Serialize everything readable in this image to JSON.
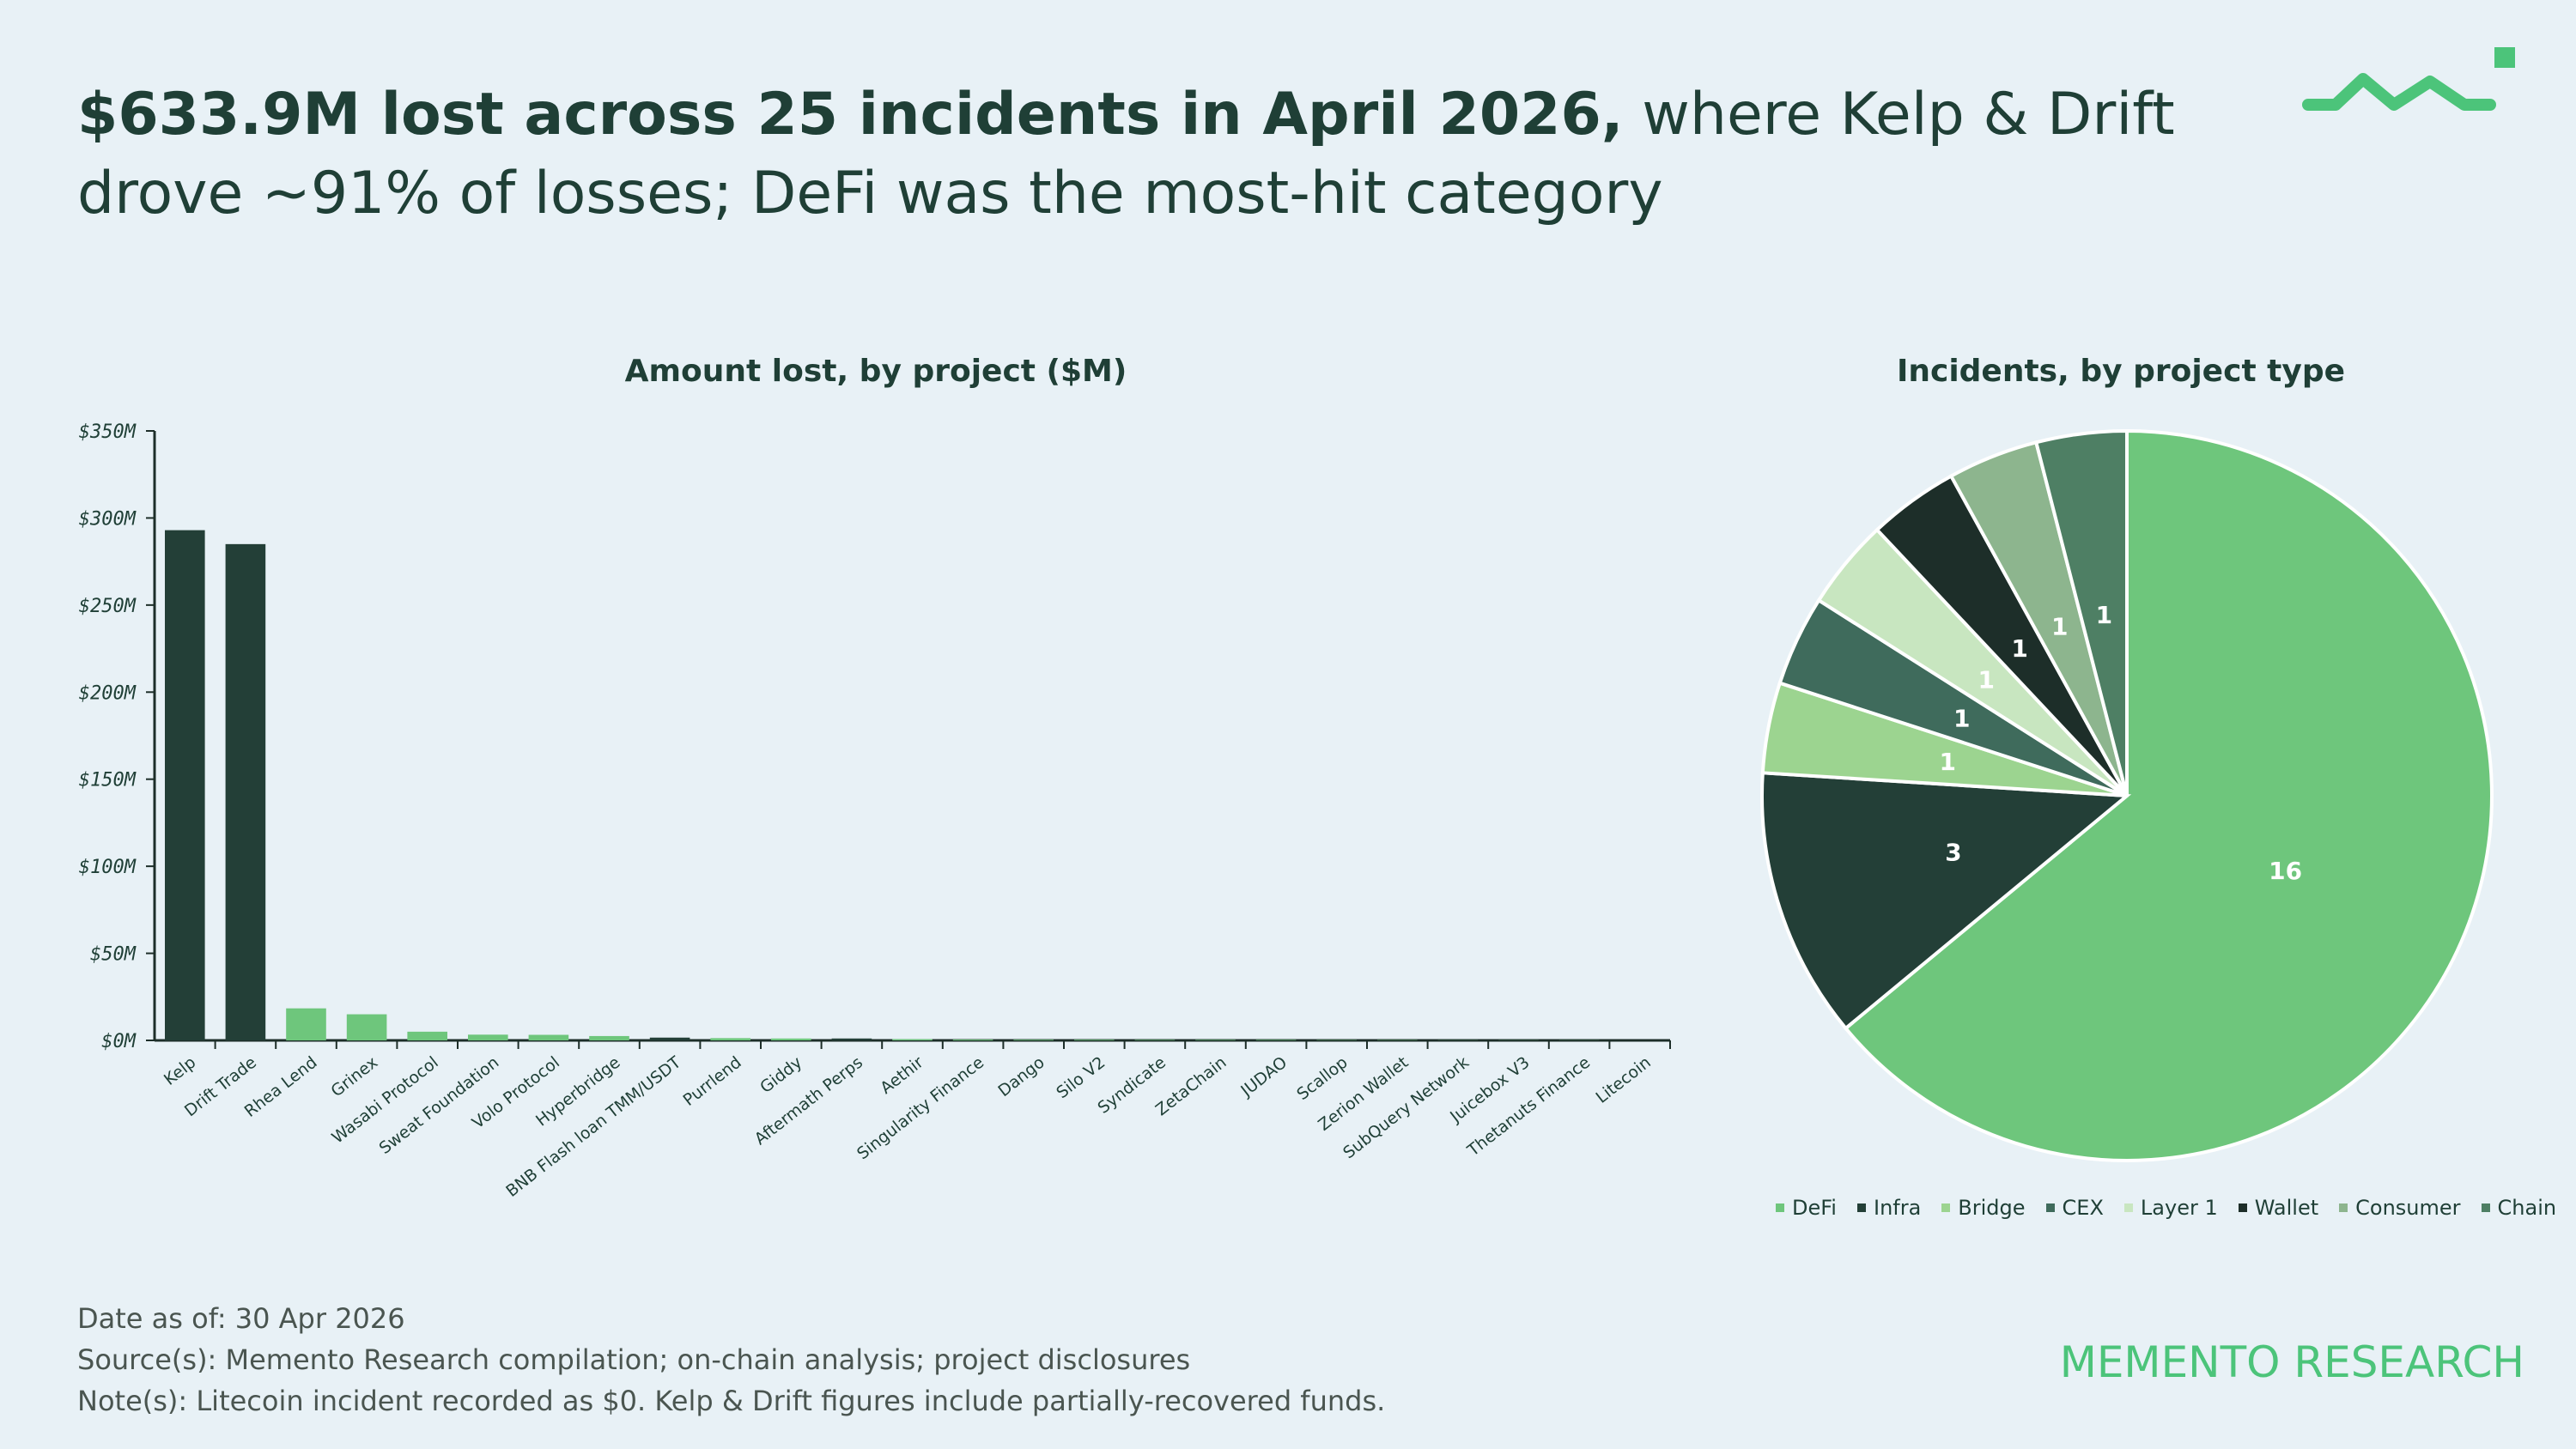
{
  "header": {
    "title_bold": "$633.9M lost across 25 incidents in April 2026,",
    "title_rest": " where Kelp & Drift drove ~91% of losses; DeFi was the most-hit category"
  },
  "logo": {
    "icon": "memento-wave-logo",
    "color": "#4cc47a"
  },
  "bar_chart_title": "Amount lost, by project ($M)",
  "pie_chart_title": "Incidents, by project type",
  "footer": {
    "date": "Date as of: 30 Apr 2026",
    "sources": "Source(s): Memento Research compilation; on-chain analysis; project disclosures",
    "notes": "Note(s): Litecoin incident recorded as $0. Kelp & Drift figures include partially-recovered funds."
  },
  "brand": "MEMENTO RESEARCH",
  "colors": {
    "background": "#e8f1f6",
    "dark_green": "#233f37",
    "light_green": "#6ec67c",
    "text": "#1f3f36",
    "brand": "#4cc47a"
  },
  "chart_data": [
    {
      "type": "bar",
      "title": "Amount lost, by project ($M)",
      "categories": [
        "Kelp",
        "Drift Trade",
        "Rhea Lend",
        "Grinex",
        "Wasabi Protocol",
        "Sweat Foundation",
        "Volo Protocol",
        "Hyperbridge",
        "BNB Flash loan TMM/USDT",
        "Purrlend",
        "Giddy",
        "Aftermath Perps",
        "Aethir",
        "Singularity Finance",
        "Dango",
        "Silo V2",
        "Syndicate",
        "ZetaChain",
        "JUDAO",
        "Scallop",
        "Zerion Wallet",
        "SubQuery Network",
        "Juicebox V3",
        "Thetanuts Finance",
        "Litecoin"
      ],
      "values": [
        293,
        285,
        18.4,
        15,
        5,
        3.3,
        3.2,
        2.5,
        1.6,
        1.3,
        1.1,
        1.1,
        0.7,
        0.5,
        0.4,
        0.4,
        0.3,
        0.3,
        0.3,
        0.2,
        0.2,
        0.1,
        0.1,
        0.1,
        0
      ],
      "bar_colors": [
        "#233f37",
        "#233f37",
        "#6ec67c",
        "#6ec67c",
        "#6ec67c",
        "#6ec67c",
        "#6ec67c",
        "#6ec67c",
        "#233f37",
        "#6ec67c",
        "#6ec67c",
        "#233f37",
        "#6ec67c",
        "#6ec67c",
        "#6ec67c",
        "#6ec67c",
        "#6ec67c",
        "#6ec67c",
        "#6ec67c",
        "#6ec67c",
        "#6ec67c",
        "#6ec67c",
        "#6ec67c",
        "#6ec67c",
        "#6ec67c"
      ],
      "ylim": [
        0,
        350
      ],
      "yticks": [
        0,
        50,
        100,
        150,
        200,
        250,
        300,
        350
      ],
      "ytick_labels": [
        "$0M",
        "$50M",
        "$100M",
        "$150M",
        "$200M",
        "$250M",
        "$300M",
        "$350M"
      ],
      "xlabel": "",
      "ylabel": "",
      "grid": false
    },
    {
      "type": "pie",
      "title": "Incidents, by project type",
      "categories": [
        "DeFi",
        "Infra",
        "Bridge",
        "CEX",
        "Layer 1",
        "Wallet",
        "Consumer",
        "Chain"
      ],
      "values": [
        16,
        3,
        1,
        1,
        1,
        1,
        1,
        1
      ],
      "colors": [
        "#6ec67c",
        "#233f37",
        "#9cd490",
        "#3f6b5c",
        "#c8e6c0",
        "#1d2e29",
        "#8db58e",
        "#4e7f64"
      ],
      "label_colors": [
        "#ffffff",
        "#ffffff",
        "#ffffff",
        "#ffffff",
        "#ffffff",
        "#ffffff",
        "#ffffff",
        "#ffffff"
      ],
      "start": "12 o'clock",
      "direction": "clockwise",
      "legend": "bottom"
    }
  ]
}
